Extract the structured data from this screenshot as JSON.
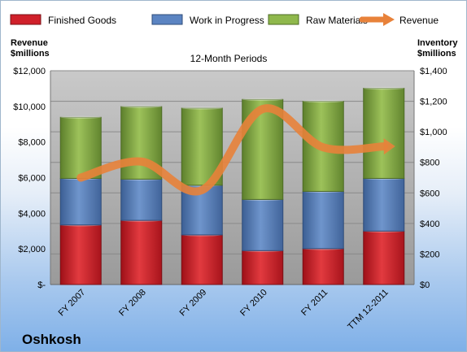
{
  "chart_data": {
    "type": "bar",
    "stacked": true,
    "title": "12-Month Periods",
    "brand": "Oshkosh",
    "left_axis_label": [
      "Revenue",
      "$millions"
    ],
    "right_axis_label": [
      "Inventory",
      "$millions"
    ],
    "categories": [
      "FY 2007",
      "FY 2008",
      "FY 2009",
      "FY 2010",
      "FY 2011",
      "TTM 12-2011"
    ],
    "left_ticks": [
      "$-",
      "$2,000",
      "$4,000",
      "$6,000",
      "$8,000",
      "$10,000",
      "$12,000"
    ],
    "right_ticks": [
      "$0",
      "$200",
      "$400",
      "$600",
      "$800",
      "$1,000",
      "$1,200",
      "$1,400"
    ],
    "left_ylim": [
      0,
      12000
    ],
    "right_ylim": [
      0,
      1400
    ],
    "series": [
      {
        "name": "Finished Goods",
        "axis": "right",
        "color": "#d0202a",
        "values": [
          390,
          420,
          325,
          222,
          235,
          350
        ]
      },
      {
        "name": "Work in Progress",
        "axis": "right",
        "color": "#5b84c2",
        "values": [
          305,
          270,
          325,
          335,
          375,
          345
        ]
      },
      {
        "name": "Raw Materials",
        "axis": "right",
        "color": "#8fb84c",
        "values": [
          400,
          475,
          505,
          655,
          590,
          590
        ]
      },
      {
        "name": "Revenue",
        "axis": "left",
        "type": "line",
        "color": "#e8823a",
        "values": [
          6000,
          6900,
          5300,
          9850,
          7700,
          7750
        ]
      }
    ],
    "legend_position": "top"
  }
}
